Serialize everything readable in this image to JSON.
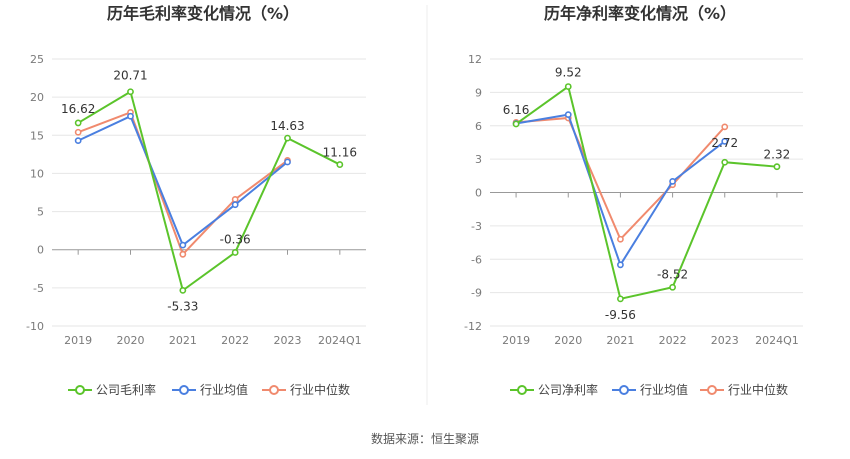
{
  "source_text": "数据来源：恒生聚源",
  "colors": {
    "company": "#5bc42b",
    "industry_avg": "#4a7fe0",
    "industry_median": "#f08a6e",
    "grid": "#e6e6e6",
    "axis": "#999999"
  },
  "chart_data": [
    {
      "type": "line",
      "title": "历年毛利率变化情况（%）",
      "categories": [
        "2019",
        "2020",
        "2021",
        "2022",
        "2023",
        "2024Q1"
      ],
      "yticks": [
        "25",
        "20",
        "15",
        "10",
        "5",
        "0",
        "-5",
        "-10"
      ],
      "ylim": [
        -10,
        25
      ],
      "grid": true,
      "legend_position": "bottom",
      "series": [
        {
          "name": "公司毛利率",
          "color_key": "company",
          "values": [
            16.62,
            20.71,
            -5.33,
            -0.36,
            14.63,
            11.16
          ],
          "labels": [
            "16.62",
            "20.71",
            "-5.33",
            "-0.36",
            "14.63",
            "11.16"
          ]
        },
        {
          "name": "行业均值",
          "color_key": "industry_avg",
          "values": [
            14.3,
            17.5,
            0.6,
            5.9,
            11.5,
            null
          ]
        },
        {
          "name": "行业中位数",
          "color_key": "industry_median",
          "values": [
            15.4,
            18.0,
            -0.6,
            6.6,
            11.7,
            null
          ]
        }
      ]
    },
    {
      "type": "line",
      "title": "历年净利率变化情况（%）",
      "categories": [
        "2019",
        "2020",
        "2021",
        "2022",
        "2023",
        "2024Q1"
      ],
      "yticks": [
        "12",
        "9",
        "6",
        "3",
        "0",
        "-3",
        "-6",
        "-9",
        "-12"
      ],
      "ylim": [
        -12,
        12
      ],
      "grid": true,
      "legend_position": "bottom",
      "series": [
        {
          "name": "公司净利率",
          "color_key": "company",
          "values": [
            6.16,
            9.52,
            -9.56,
            -8.52,
            2.72,
            2.32
          ],
          "labels": [
            "6.16",
            "9.52",
            "-9.56",
            "-8.52",
            "2.72",
            "2.32"
          ]
        },
        {
          "name": "行业均值",
          "color_key": "industry_avg",
          "values": [
            6.2,
            7.0,
            -6.5,
            1.0,
            4.6,
            null
          ]
        },
        {
          "name": "行业中位数",
          "color_key": "industry_median",
          "values": [
            6.3,
            6.7,
            -4.2,
            0.7,
            5.9,
            null
          ]
        }
      ]
    }
  ]
}
